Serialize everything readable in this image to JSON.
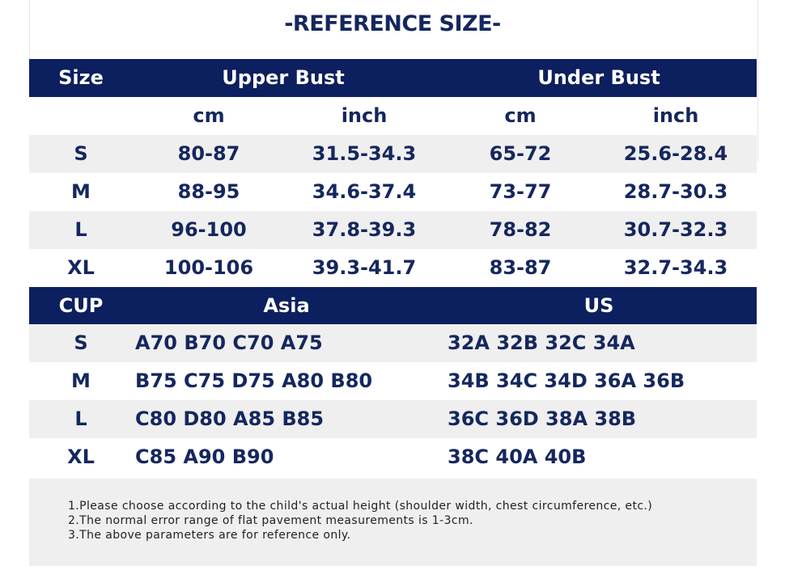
{
  "title": "-REFERENCE SIZE-",
  "size_table": {
    "header": [
      "Size",
      "Upper Bust",
      "Under Bust"
    ],
    "subheader": [
      "cm",
      "inch",
      "cm",
      "inch"
    ],
    "rows": [
      [
        "S",
        "80-87",
        "31.5-34.3",
        "65-72",
        "25.6-28.4"
      ],
      [
        "M",
        "88-95",
        "34.6-37.4",
        "73-77",
        "28.7-30.3"
      ],
      [
        "L",
        "96-100",
        "37.8-39.3",
        "78-82",
        "30.7-32.3"
      ],
      [
        "XL",
        "100-106",
        "39.3-41.7",
        "83-87",
        "32.7-34.3"
      ]
    ]
  },
  "cup_table": {
    "header": [
      "CUP",
      "Asia",
      "US"
    ],
    "rows": [
      [
        "S",
        "A70 B70 C70 A75",
        "32A 32B 32C 34A"
      ],
      [
        "M",
        "B75 C75 D75 A80 B80",
        "34B 34C 34D 36A 36B"
      ],
      [
        "L",
        "C80 D80 A85 B85",
        "36C 36D 38A 38B"
      ],
      [
        "XL",
        "C85 A90 B90",
        "38C 40A 40B"
      ]
    ]
  },
  "notes": [
    "1.Please choose according to the child's actual height (shoulder width, chest circumference, etc.)",
    "2.The normal error range of flat pavement measurements is 1-3cm.",
    "3.The above parameters are for reference only."
  ]
}
